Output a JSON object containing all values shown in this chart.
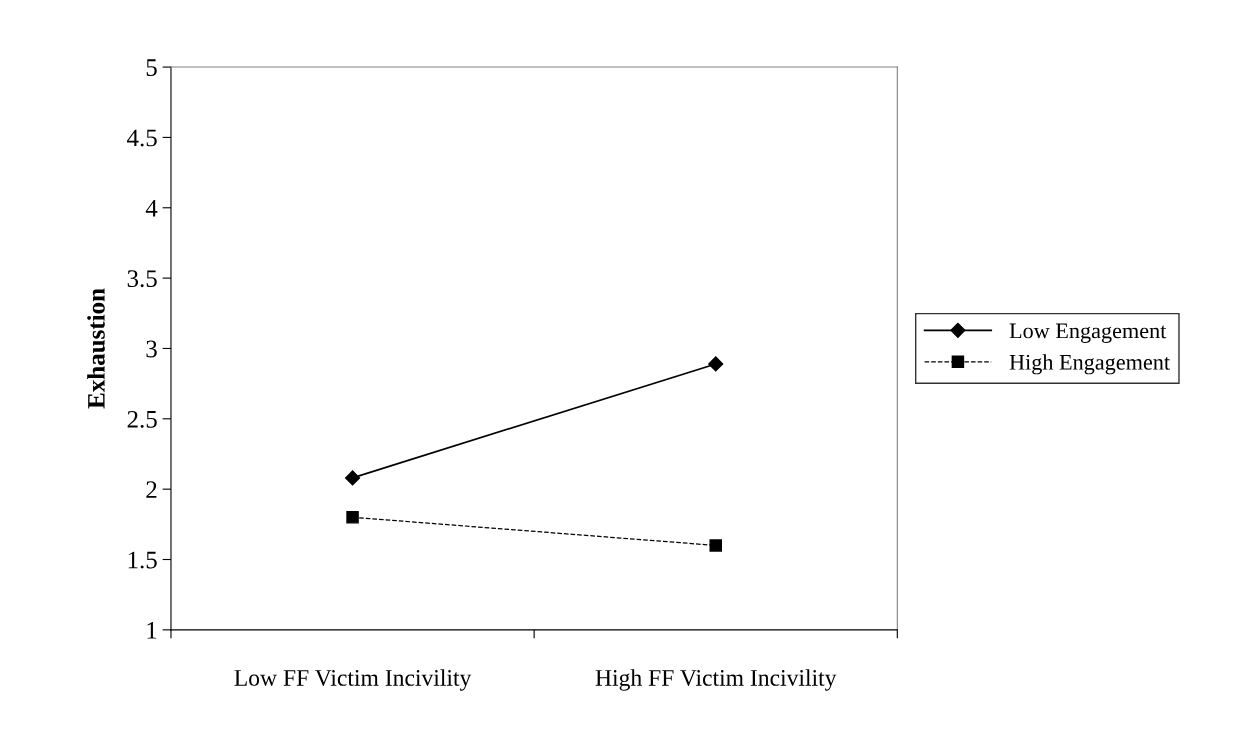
{
  "chart_data": {
    "type": "line",
    "ylabel": "Exhaustion",
    "categories": [
      "Low FF Victim Incivility",
      "High FF Victim Incivility"
    ],
    "series": [
      {
        "name": "Low Engagement",
        "color": "#000000",
        "values": [
          2.08,
          2.89
        ],
        "marker": "diamond",
        "line_style": "solid"
      },
      {
        "name": "High Engagement",
        "color": "#000000",
        "values": [
          1.8,
          1.6
        ],
        "marker": "square",
        "line_style": "dashed"
      }
    ],
    "ylim": [
      1,
      5
    ],
    "yticks": [
      1,
      1.5,
      2,
      2.5,
      3,
      3.5,
      4,
      4.5,
      5
    ],
    "grid": false,
    "legend": "right"
  }
}
